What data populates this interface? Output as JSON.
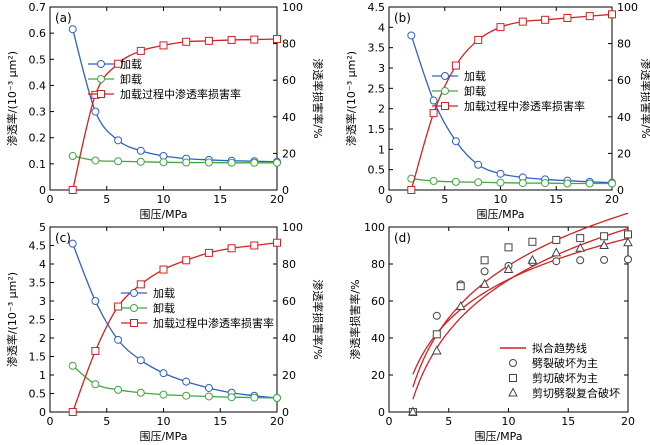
{
  "colors": {
    "load": "#3060c8",
    "unload": "#40a840",
    "damage": "#d42020"
  },
  "chart_data": [
    {
      "type": "line",
      "tag": "(a)",
      "xlabel": "围压/MPa",
      "ylabel_left": "渗透率/(10⁻³ μm²)",
      "ylabel_right": "渗透率损害率/%",
      "xlim": [
        0,
        20
      ],
      "ylim_left": [
        0,
        0.7
      ],
      "ylim_right": [
        0,
        100
      ],
      "xticks": [
        0,
        5,
        10,
        15,
        20
      ],
      "yticks_left": [
        0,
        0.1,
        0.2,
        0.3,
        0.4,
        0.5,
        0.6,
        0.7
      ],
      "yticks_right": [
        0,
        20,
        40,
        60,
        80,
        100
      ],
      "legend": [
        "加载",
        "卸载",
        "加载过程中渗透率损害率"
      ],
      "series": [
        {
          "name": "加载",
          "axis": "left",
          "color": "#3060c8",
          "marker": "circle",
          "x": [
            2,
            4,
            6,
            8,
            10,
            12,
            14,
            16,
            18,
            20
          ],
          "y": [
            0.615,
            0.3,
            0.19,
            0.15,
            0.13,
            0.12,
            0.115,
            0.112,
            0.11,
            0.108
          ]
        },
        {
          "name": "卸载",
          "axis": "left",
          "color": "#40a840",
          "marker": "circle",
          "x": [
            2,
            4,
            6,
            8,
            10,
            12,
            14,
            16,
            18,
            20
          ],
          "y": [
            0.13,
            0.113,
            0.11,
            0.108,
            0.106,
            0.105,
            0.105,
            0.104,
            0.104,
            0.104
          ]
        },
        {
          "name": "加载过程中渗透率损害率",
          "axis": "right",
          "color": "#d42020",
          "marker": "square",
          "x": [
            2,
            4,
            6,
            8,
            10,
            12,
            14,
            16,
            18,
            20
          ],
          "y": [
            0,
            52,
            69,
            76,
            79,
            81,
            81.5,
            82,
            82.2,
            82.5
          ]
        }
      ]
    },
    {
      "type": "line",
      "tag": "(b)",
      "xlabel": "围压/MPa",
      "ylabel_left": "渗透率/(10⁻³ μm²)",
      "ylabel_right": "渗透率损害率/%",
      "xlim": [
        0,
        20
      ],
      "ylim_left": [
        0,
        4.5
      ],
      "ylim_right": [
        0,
        100
      ],
      "xticks": [
        0,
        5,
        10,
        15,
        20
      ],
      "yticks_left": [
        0,
        0.5,
        1,
        1.5,
        2,
        2.5,
        3,
        3.5,
        4,
        4.5
      ],
      "yticks_right": [
        0,
        20,
        40,
        60,
        80,
        100
      ],
      "legend": [
        "加载",
        "卸载",
        "加载过程中渗透率损害率"
      ],
      "series": [
        {
          "name": "加载",
          "axis": "left",
          "color": "#3060c8",
          "marker": "circle",
          "x": [
            2,
            4,
            6,
            8,
            10,
            12,
            14,
            16,
            18,
            20
          ],
          "y": [
            3.8,
            2.2,
            1.2,
            0.62,
            0.4,
            0.31,
            0.26,
            0.23,
            0.2,
            0.18
          ]
        },
        {
          "name": "卸载",
          "axis": "left",
          "color": "#40a840",
          "marker": "circle",
          "x": [
            2,
            4,
            6,
            8,
            10,
            12,
            14,
            16,
            18,
            20
          ],
          "y": [
            0.28,
            0.22,
            0.2,
            0.19,
            0.18,
            0.17,
            0.17,
            0.16,
            0.16,
            0.16
          ]
        },
        {
          "name": "加载过程中渗透率损害率",
          "axis": "right",
          "color": "#d42020",
          "marker": "square",
          "x": [
            2,
            4,
            6,
            8,
            10,
            12,
            14,
            16,
            18,
            20
          ],
          "y": [
            0,
            42,
            68,
            82,
            89,
            92,
            93,
            94,
            95,
            96
          ]
        }
      ]
    },
    {
      "type": "line",
      "tag": "(c)",
      "xlabel": "围压/MPa",
      "ylabel_left": "渗透率/(10⁻³ μm²)",
      "ylabel_right": "渗透率损害率/%",
      "xlim": [
        0,
        20
      ],
      "ylim_left": [
        0,
        5
      ],
      "ylim_right": [
        0,
        100
      ],
      "xticks": [
        0,
        5,
        10,
        15,
        20
      ],
      "yticks_left": [
        0,
        0.5,
        1,
        1.5,
        2,
        2.5,
        3,
        3.5,
        4,
        4.5,
        5
      ],
      "yticks_right": [
        0,
        20,
        40,
        60,
        80,
        100
      ],
      "legend": [
        "加载",
        "卸载",
        "加载过程中渗透率损害率"
      ],
      "series": [
        {
          "name": "加载",
          "axis": "left",
          "color": "#3060c8",
          "marker": "circle",
          "x": [
            2,
            4,
            6,
            8,
            10,
            12,
            14,
            16,
            18,
            20
          ],
          "y": [
            4.55,
            3.0,
            1.95,
            1.4,
            1.05,
            0.82,
            0.65,
            0.52,
            0.44,
            0.38
          ]
        },
        {
          "name": "卸载",
          "axis": "left",
          "color": "#40a840",
          "marker": "circle",
          "x": [
            2,
            4,
            6,
            8,
            10,
            12,
            14,
            16,
            18,
            20
          ],
          "y": [
            1.25,
            0.75,
            0.6,
            0.52,
            0.47,
            0.44,
            0.42,
            0.4,
            0.39,
            0.38
          ]
        },
        {
          "name": "加载过程中渗透率损害率",
          "axis": "right",
          "color": "#d42020",
          "marker": "square",
          "x": [
            2,
            4,
            6,
            8,
            10,
            12,
            14,
            16,
            18,
            20
          ],
          "y": [
            0,
            33,
            57,
            69,
            77,
            82,
            86,
            88.5,
            90,
            91.5
          ]
        }
      ]
    },
    {
      "type": "line",
      "tag": "(d)",
      "xlabel": "围压/MPa",
      "ylabel_left": "渗透率损害率/%",
      "xlim": [
        0,
        20
      ],
      "ylim_left": [
        0,
        100
      ],
      "xticks": [
        0,
        5,
        10,
        15,
        20
      ],
      "yticks_left": [
        0,
        20,
        40,
        60,
        80,
        100
      ],
      "legend": [
        "拟合趋势线",
        "劈裂破坏为主",
        "剪切破坏为主",
        "剪切劈裂复合破坏"
      ],
      "series": [
        {
          "name": "劈裂破坏为主",
          "axis": "left",
          "color": "#444444",
          "marker": "circle",
          "x": [
            2,
            4,
            6,
            8,
            10,
            12,
            14,
            16,
            18,
            20
          ],
          "y": [
            0,
            52,
            69,
            76,
            79,
            81,
            81.5,
            82,
            82.2,
            82.5
          ]
        },
        {
          "name": "剪切破坏为主",
          "axis": "left",
          "color": "#444444",
          "marker": "square",
          "x": [
            2,
            4,
            6,
            8,
            10,
            12,
            14,
            16,
            18,
            20
          ],
          "y": [
            0,
            42,
            68,
            82,
            89,
            92,
            93,
            94,
            95,
            96
          ]
        },
        {
          "name": "剪切劈裂复合破坏",
          "axis": "left",
          "color": "#444444",
          "marker": "triangle",
          "x": [
            2,
            4,
            6,
            8,
            10,
            12,
            14,
            16,
            18,
            20
          ],
          "y": [
            0,
            33,
            57,
            69,
            77,
            82,
            86,
            88.5,
            90,
            91.5
          ]
        }
      ],
      "fit_color": "#d42020"
    }
  ]
}
